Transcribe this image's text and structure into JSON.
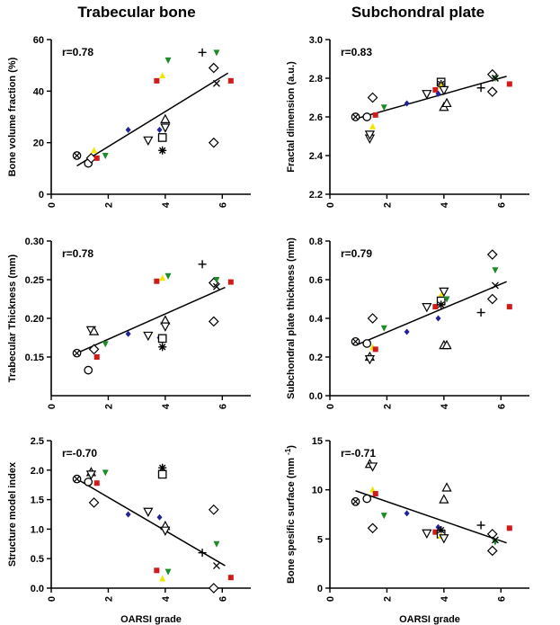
{
  "columns": {
    "left_title": "Trabecular bone",
    "right_title": "Subchondral plate"
  },
  "marker_colors": {
    "red": "#d11a1a",
    "green": "#1f8a2a",
    "yellow": "#f2e600",
    "blue": "#22229a",
    "black": "#000000"
  },
  "chart_data": [
    {
      "type": "scatter",
      "id": "bvf",
      "ylabel": "Bone volume fraction (%)",
      "xlabel": "",
      "annotation": "r=0.78",
      "xlim": [
        0,
        7
      ],
      "ylim": [
        0,
        60
      ],
      "xticks": [
        0,
        2,
        4,
        6
      ],
      "yticks": [
        0,
        20,
        40,
        60
      ],
      "yticklabels": [
        "0",
        "20",
        "40",
        "60"
      ],
      "fit": [
        [
          0.9,
          11
        ],
        [
          6.2,
          47
        ]
      ],
      "points": [
        {
          "x": 0.9,
          "y": 15,
          "m": "otimes"
        },
        {
          "x": 1.3,
          "y": 12,
          "m": "circle"
        },
        {
          "x": 1.4,
          "y": 14,
          "m": "diamond"
        },
        {
          "x": 1.5,
          "y": 17,
          "m": "tri-yellow"
        },
        {
          "x": 1.6,
          "y": 14,
          "m": "sq-red"
        },
        {
          "x": 1.9,
          "y": 15,
          "m": "tri-green"
        },
        {
          "x": 2.7,
          "y": 25,
          "m": "dia-blue"
        },
        {
          "x": 3.4,
          "y": 21,
          "m": "tri-down"
        },
        {
          "x": 3.7,
          "y": 44,
          "m": "sq-red"
        },
        {
          "x": 3.8,
          "y": 25,
          "m": "dia-blue"
        },
        {
          "x": 3.9,
          "y": 46,
          "m": "tri-yellow"
        },
        {
          "x": 3.9,
          "y": 22,
          "m": "square"
        },
        {
          "x": 3.9,
          "y": 17,
          "m": "star"
        },
        {
          "x": 4.0,
          "y": 29,
          "m": "triangle"
        },
        {
          "x": 4.0,
          "y": 26,
          "m": "tri-down"
        },
        {
          "x": 4.1,
          "y": 52,
          "m": "tri-green"
        },
        {
          "x": 5.3,
          "y": 55,
          "m": "plus"
        },
        {
          "x": 5.7,
          "y": 49,
          "m": "diamond"
        },
        {
          "x": 5.7,
          "y": 20,
          "m": "diamond"
        },
        {
          "x": 5.8,
          "y": 55,
          "m": "tri-green"
        },
        {
          "x": 5.8,
          "y": 43,
          "m": "cross"
        },
        {
          "x": 6.3,
          "y": 44,
          "m": "sq-red"
        }
      ]
    },
    {
      "type": "scatter",
      "id": "fd",
      "ylabel": "Fractal dimension (a.u.)",
      "xlabel": "",
      "annotation": "r=0.83",
      "xlim": [
        0,
        7
      ],
      "ylim": [
        2.2,
        3.0
      ],
      "xticks": [
        0,
        2,
        4,
        6
      ],
      "yticks": [
        2.2,
        2.4,
        2.6,
        2.8,
        3.0
      ],
      "yticklabels": [
        "2.2",
        "2.4",
        "2.6",
        "2.8",
        "3.0"
      ],
      "fit": [
        [
          0.9,
          2.59
        ],
        [
          6.2,
          2.81
        ]
      ],
      "points": [
        {
          "x": 0.9,
          "y": 2.6,
          "m": "otimes"
        },
        {
          "x": 1.3,
          "y": 2.6,
          "m": "circle"
        },
        {
          "x": 1.4,
          "y": 2.49,
          "m": "tri-down"
        },
        {
          "x": 1.4,
          "y": 2.51,
          "m": "tri-down"
        },
        {
          "x": 1.5,
          "y": 2.7,
          "m": "diamond"
        },
        {
          "x": 1.5,
          "y": 2.55,
          "m": "tri-yellow"
        },
        {
          "x": 1.6,
          "y": 2.61,
          "m": "sq-red"
        },
        {
          "x": 1.9,
          "y": 2.65,
          "m": "tri-green"
        },
        {
          "x": 2.7,
          "y": 2.67,
          "m": "dia-blue"
        },
        {
          "x": 3.4,
          "y": 2.72,
          "m": "tri-down"
        },
        {
          "x": 3.7,
          "y": 2.74,
          "m": "sq-red"
        },
        {
          "x": 3.8,
          "y": 2.72,
          "m": "dia-blue"
        },
        {
          "x": 3.9,
          "y": 2.78,
          "m": "square"
        },
        {
          "x": 3.9,
          "y": 2.77,
          "m": "star"
        },
        {
          "x": 3.9,
          "y": 2.76,
          "m": "tri-yellow"
        },
        {
          "x": 4.0,
          "y": 2.74,
          "m": "tri-down"
        },
        {
          "x": 4.0,
          "y": 2.65,
          "m": "triangle"
        },
        {
          "x": 4.1,
          "y": 2.67,
          "m": "triangle"
        },
        {
          "x": 5.3,
          "y": 2.75,
          "m": "plus"
        },
        {
          "x": 5.7,
          "y": 2.82,
          "m": "diamond"
        },
        {
          "x": 5.7,
          "y": 2.73,
          "m": "diamond"
        },
        {
          "x": 5.8,
          "y": 2.8,
          "m": "tri-green"
        },
        {
          "x": 5.8,
          "y": 2.8,
          "m": "cross"
        },
        {
          "x": 6.3,
          "y": 2.77,
          "m": "sq-red"
        }
      ]
    },
    {
      "type": "scatter",
      "id": "tt",
      "ylabel": "Trabecular Thickness (mm)",
      "xlabel": "",
      "annotation": "r=0.78",
      "xlim": [
        0,
        7
      ],
      "ylim": [
        0.1,
        0.3
      ],
      "xticks": [
        0,
        2,
        4,
        6
      ],
      "yticks": [
        0.15,
        0.2,
        0.25,
        0.3
      ],
      "yticklabels": [
        "0.15",
        "0.20",
        "0.25",
        "0.30"
      ],
      "fit": [
        [
          0.9,
          0.155
        ],
        [
          6.1,
          0.24
        ]
      ],
      "points": [
        {
          "x": 0.9,
          "y": 0.155,
          "m": "otimes"
        },
        {
          "x": 1.3,
          "y": 0.133,
          "m": "circle"
        },
        {
          "x": 1.4,
          "y": 0.185,
          "m": "tri-down"
        },
        {
          "x": 1.5,
          "y": 0.183,
          "m": "triangle"
        },
        {
          "x": 1.5,
          "y": 0.16,
          "m": "diamond"
        },
        {
          "x": 1.6,
          "y": 0.15,
          "m": "sq-red"
        },
        {
          "x": 1.9,
          "y": 0.167,
          "m": "tri-green"
        },
        {
          "x": 2.7,
          "y": 0.18,
          "m": "dia-blue"
        },
        {
          "x": 3.4,
          "y": 0.178,
          "m": "tri-down"
        },
        {
          "x": 3.7,
          "y": 0.248,
          "m": "sq-red"
        },
        {
          "x": 3.8,
          "y": 0.175,
          "m": "dia-blue"
        },
        {
          "x": 3.9,
          "y": 0.252,
          "m": "tri-yellow"
        },
        {
          "x": 3.9,
          "y": 0.174,
          "m": "square"
        },
        {
          "x": 3.9,
          "y": 0.163,
          "m": "star"
        },
        {
          "x": 4.0,
          "y": 0.197,
          "m": "triangle"
        },
        {
          "x": 4.0,
          "y": 0.19,
          "m": "tri-down"
        },
        {
          "x": 4.1,
          "y": 0.255,
          "m": "tri-green"
        },
        {
          "x": 5.3,
          "y": 0.27,
          "m": "plus"
        },
        {
          "x": 5.7,
          "y": 0.246,
          "m": "diamond"
        },
        {
          "x": 5.7,
          "y": 0.196,
          "m": "diamond"
        },
        {
          "x": 5.8,
          "y": 0.25,
          "m": "tri-green"
        },
        {
          "x": 5.8,
          "y": 0.241,
          "m": "cross"
        },
        {
          "x": 6.3,
          "y": 0.247,
          "m": "sq-red"
        }
      ]
    },
    {
      "type": "scatter",
      "id": "spt",
      "ylabel": "Subchondral plate thickness (mm)",
      "xlabel": "",
      "annotation": "r=0.79",
      "xlim": [
        0,
        7
      ],
      "ylim": [
        0.0,
        0.8
      ],
      "xticks": [
        0,
        2,
        4,
        6
      ],
      "yticks": [
        0.0,
        0.2,
        0.4,
        0.6,
        0.8
      ],
      "yticklabels": [
        "0.0",
        "0.2",
        "0.4",
        "0.6",
        "0.8"
      ],
      "fit": [
        [
          0.9,
          0.26
        ],
        [
          6.2,
          0.59
        ]
      ],
      "points": [
        {
          "x": 0.9,
          "y": 0.28,
          "m": "otimes"
        },
        {
          "x": 1.3,
          "y": 0.27,
          "m": "circle"
        },
        {
          "x": 1.4,
          "y": 0.2,
          "m": "triangle"
        },
        {
          "x": 1.4,
          "y": 0.19,
          "m": "tri-down"
        },
        {
          "x": 1.5,
          "y": 0.4,
          "m": "diamond"
        },
        {
          "x": 1.5,
          "y": 0.25,
          "m": "tri-yellow"
        },
        {
          "x": 1.6,
          "y": 0.24,
          "m": "sq-red"
        },
        {
          "x": 1.9,
          "y": 0.35,
          "m": "tri-green"
        },
        {
          "x": 2.7,
          "y": 0.33,
          "m": "dia-blue"
        },
        {
          "x": 3.4,
          "y": 0.46,
          "m": "tri-down"
        },
        {
          "x": 3.7,
          "y": 0.46,
          "m": "sq-red"
        },
        {
          "x": 3.8,
          "y": 0.4,
          "m": "dia-blue"
        },
        {
          "x": 3.9,
          "y": 0.52,
          "m": "tri-yellow"
        },
        {
          "x": 3.9,
          "y": 0.49,
          "m": "square"
        },
        {
          "x": 3.9,
          "y": 0.47,
          "m": "star"
        },
        {
          "x": 4.0,
          "y": 0.54,
          "m": "tri-down"
        },
        {
          "x": 4.0,
          "y": 0.26,
          "m": "triangle"
        },
        {
          "x": 4.1,
          "y": 0.26,
          "m": "triangle"
        },
        {
          "x": 4.1,
          "y": 0.5,
          "m": "tri-green"
        },
        {
          "x": 5.3,
          "y": 0.43,
          "m": "plus"
        },
        {
          "x": 5.7,
          "y": 0.73,
          "m": "diamond"
        },
        {
          "x": 5.7,
          "y": 0.5,
          "m": "diamond"
        },
        {
          "x": 5.8,
          "y": 0.65,
          "m": "tri-green"
        },
        {
          "x": 5.8,
          "y": 0.57,
          "m": "cross"
        },
        {
          "x": 6.3,
          "y": 0.46,
          "m": "sq-red"
        }
      ]
    },
    {
      "type": "scatter",
      "id": "smi",
      "ylabel": "Structure model index",
      "xlabel": "OARSI grade",
      "annotation": "r=-0.70",
      "xlim": [
        0,
        7
      ],
      "ylim": [
        0.0,
        2.5
      ],
      "xticks": [
        0,
        2,
        4,
        6
      ],
      "yticks": [
        0.0,
        0.5,
        1.0,
        1.5,
        2.0,
        2.5
      ],
      "yticklabels": [
        "0.0",
        "0.5",
        "1.0",
        "1.5",
        "2.0",
        "2.5"
      ],
      "fit": [
        [
          0.9,
          1.85
        ],
        [
          6.1,
          0.38
        ]
      ],
      "points": [
        {
          "x": 0.9,
          "y": 1.85,
          "m": "otimes"
        },
        {
          "x": 1.3,
          "y": 1.8,
          "m": "circle"
        },
        {
          "x": 1.4,
          "y": 1.96,
          "m": "triangle"
        },
        {
          "x": 1.4,
          "y": 1.93,
          "m": "tri-down"
        },
        {
          "x": 1.5,
          "y": 1.45,
          "m": "diamond"
        },
        {
          "x": 1.6,
          "y": 1.78,
          "m": "sq-red"
        },
        {
          "x": 1.9,
          "y": 1.96,
          "m": "tri-green"
        },
        {
          "x": 2.7,
          "y": 1.25,
          "m": "dia-blue"
        },
        {
          "x": 3.4,
          "y": 1.3,
          "m": "tri-down"
        },
        {
          "x": 3.7,
          "y": 0.3,
          "m": "sq-red"
        },
        {
          "x": 3.8,
          "y": 1.2,
          "m": "dia-blue"
        },
        {
          "x": 3.9,
          "y": 0.16,
          "m": "tri-yellow"
        },
        {
          "x": 3.9,
          "y": 2.04,
          "m": "star"
        },
        {
          "x": 3.9,
          "y": 1.93,
          "m": "square"
        },
        {
          "x": 4.0,
          "y": 1.05,
          "m": "triangle"
        },
        {
          "x": 4.0,
          "y": 0.98,
          "m": "tri-down"
        },
        {
          "x": 4.1,
          "y": 0.28,
          "m": "tri-green"
        },
        {
          "x": 5.3,
          "y": 0.6,
          "m": "plus"
        },
        {
          "x": 5.7,
          "y": 1.33,
          "m": "diamond"
        },
        {
          "x": 5.7,
          "y": 0.0,
          "m": "diamond"
        },
        {
          "x": 5.8,
          "y": 0.75,
          "m": "tri-green"
        },
        {
          "x": 5.8,
          "y": 0.38,
          "m": "cross"
        },
        {
          "x": 6.3,
          "y": 0.18,
          "m": "sq-red"
        }
      ]
    },
    {
      "type": "scatter",
      "id": "bss",
      "ylabel": "Bone spesific surface (mm -1)",
      "xlabel": "OARSI grade",
      "annotation": "r=-0.71",
      "xlim": [
        0,
        7
      ],
      "ylim": [
        0,
        15
      ],
      "xticks": [
        0,
        2,
        4,
        6
      ],
      "yticks": [
        0,
        5,
        10,
        15
      ],
      "yticklabels": [
        "0",
        "5",
        "10",
        "15"
      ],
      "fit": [
        [
          0.9,
          9.9
        ],
        [
          6.2,
          4.6
        ]
      ],
      "points": [
        {
          "x": 0.9,
          "y": 8.8,
          "m": "otimes"
        },
        {
          "x": 1.3,
          "y": 9.1,
          "m": "circle"
        },
        {
          "x": 1.4,
          "y": 12.6,
          "m": "triangle"
        },
        {
          "x": 1.5,
          "y": 12.4,
          "m": "tri-down"
        },
        {
          "x": 1.5,
          "y": 10.0,
          "m": "tri-yellow"
        },
        {
          "x": 1.5,
          "y": 6.1,
          "m": "diamond"
        },
        {
          "x": 1.6,
          "y": 9.6,
          "m": "sq-red"
        },
        {
          "x": 1.9,
          "y": 7.4,
          "m": "tri-green"
        },
        {
          "x": 2.7,
          "y": 7.6,
          "m": "dia-blue"
        },
        {
          "x": 3.4,
          "y": 5.6,
          "m": "tri-down"
        },
        {
          "x": 3.7,
          "y": 5.7,
          "m": "sq-red"
        },
        {
          "x": 3.8,
          "y": 6.2,
          "m": "dia-blue"
        },
        {
          "x": 3.9,
          "y": 5.5,
          "m": "square"
        },
        {
          "x": 3.9,
          "y": 5.9,
          "m": "star"
        },
        {
          "x": 3.9,
          "y": 5.3,
          "m": "tri-yellow"
        },
        {
          "x": 4.0,
          "y": 9.0,
          "m": "triangle"
        },
        {
          "x": 4.0,
          "y": 5.1,
          "m": "tri-down"
        },
        {
          "x": 4.1,
          "y": 10.2,
          "m": "triangle"
        },
        {
          "x": 5.3,
          "y": 6.4,
          "m": "plus"
        },
        {
          "x": 5.7,
          "y": 5.5,
          "m": "diamond"
        },
        {
          "x": 5.7,
          "y": 3.8,
          "m": "diamond"
        },
        {
          "x": 5.8,
          "y": 4.7,
          "m": "tri-green"
        },
        {
          "x": 5.8,
          "y": 4.9,
          "m": "cross"
        },
        {
          "x": 6.3,
          "y": 6.1,
          "m": "sq-red"
        }
      ]
    }
  ]
}
